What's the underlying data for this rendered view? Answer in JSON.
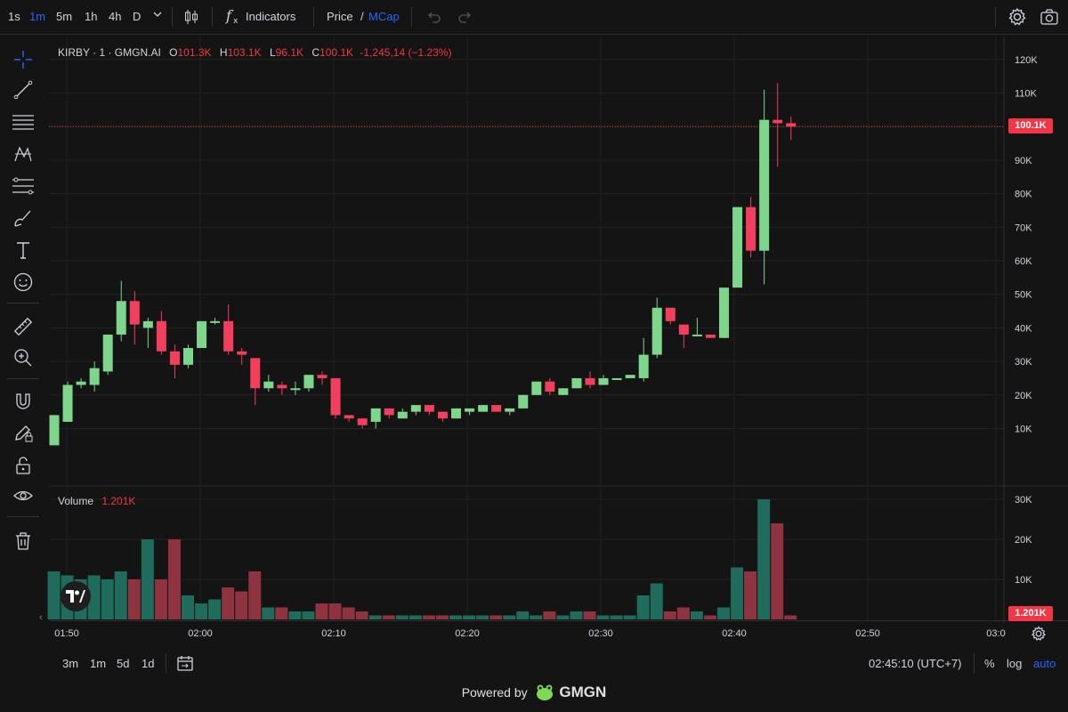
{
  "toolbar": {
    "intervals": [
      "1s",
      "1m",
      "5m",
      "1h",
      "4h",
      "D"
    ],
    "active_interval": "1m",
    "indicators_label": "Indicators",
    "price_label": "Price",
    "slash": "/",
    "mcap_label": "MCap"
  },
  "legend": {
    "symbol": "KIRBY · 1 · GMGN.AI",
    "o_label": "O",
    "o_value": "101.3K",
    "h_label": "H",
    "h_value": "103.1K",
    "l_label": "L",
    "l_value": "96.1K",
    "c_label": "C",
    "c_value": "100.1K",
    "change": "-1,245,14 (−1.23%)"
  },
  "volume_legend": {
    "label": "Volume",
    "value": "1.201K"
  },
  "price_tag": "100.1K",
  "volume_tag": "1.201K",
  "bottom": {
    "ranges": [
      "3m",
      "1m",
      "5d",
      "1d"
    ],
    "time": "02:45:10 (UTC+7)",
    "percent": "%",
    "log": "log",
    "auto": "auto"
  },
  "footer": {
    "powered": "Powered by",
    "brand": "GMGN"
  },
  "colors": {
    "up": "#7dd68c",
    "down": "#f23f5d",
    "vol_up": "#1f6b5c",
    "vol_down": "#8f3340",
    "accent": "#2962ff"
  },
  "chart_data": {
    "type": "candlestick",
    "price_axis": {
      "ticks": [
        "120K",
        "110K",
        "100K",
        "90K",
        "80K",
        "70K",
        "60K",
        "50K",
        "40K",
        "30K",
        "20K",
        "10K"
      ],
      "tick_values": [
        120,
        110,
        100,
        90,
        80,
        70,
        60,
        50,
        40,
        30,
        20,
        10
      ],
      "unit": "K"
    },
    "volume_axis": {
      "ticks": [
        "30K",
        "20K",
        "10K"
      ],
      "tick_values": [
        30,
        20,
        10
      ],
      "unit": "K"
    },
    "time_axis": {
      "ticks": [
        "01:50",
        "02:00",
        "02:10",
        "02:20",
        "02:30",
        "02:40",
        "02:50",
        "03:0"
      ]
    },
    "candles": [
      {
        "o": 5,
        "h": 14,
        "l": 5,
        "c": 14,
        "v": 12
      },
      {
        "o": 12,
        "h": 24,
        "l": 12,
        "c": 23,
        "v": 11
      },
      {
        "o": 23,
        "h": 25,
        "l": 22,
        "c": 24,
        "v": 10
      },
      {
        "o": 23,
        "h": 30,
        "l": 21,
        "c": 28,
        "v": 11
      },
      {
        "o": 27,
        "h": 38,
        "l": 26,
        "c": 38,
        "v": 10
      },
      {
        "o": 38,
        "h": 54,
        "l": 36,
        "c": 48,
        "v": 12
      },
      {
        "o": 48,
        "h": 51,
        "l": 35,
        "c": 41,
        "v": 10
      },
      {
        "o": 40,
        "h": 43,
        "l": 34,
        "c": 42,
        "v": 20
      },
      {
        "o": 42,
        "h": 45,
        "l": 32,
        "c": 33,
        "v": 10
      },
      {
        "o": 33,
        "h": 35,
        "l": 25,
        "c": 29,
        "v": 20
      },
      {
        "o": 29,
        "h": 35,
        "l": 28,
        "c": 34,
        "v": 6
      },
      {
        "o": 34,
        "h": 42,
        "l": 34,
        "c": 42,
        "v": 4
      },
      {
        "o": 42,
        "h": 43,
        "l": 41,
        "c": 42,
        "v": 5
      },
      {
        "o": 42,
        "h": 47,
        "l": 32,
        "c": 33,
        "v": 8
      },
      {
        "o": 33,
        "h": 34,
        "l": 29,
        "c": 32,
        "v": 7
      },
      {
        "o": 31,
        "h": 31,
        "l": 17,
        "c": 22,
        "v": 12
      },
      {
        "o": 22,
        "h": 26,
        "l": 21,
        "c": 24,
        "v": 3
      },
      {
        "o": 23,
        "h": 24,
        "l": 20,
        "c": 22,
        "v": 3
      },
      {
        "o": 22,
        "h": 24,
        "l": 20,
        "c": 22,
        "v": 2
      },
      {
        "o": 22,
        "h": 26,
        "l": 21,
        "c": 26,
        "v": 2
      },
      {
        "o": 26,
        "h": 27,
        "l": 23,
        "c": 25,
        "v": 4
      },
      {
        "o": 25,
        "h": 25,
        "l": 13,
        "c": 14,
        "v": 4
      },
      {
        "o": 14,
        "h": 14,
        "l": 12,
        "c": 13,
        "v": 3
      },
      {
        "o": 13,
        "h": 12,
        "l": 10,
        "c": 11,
        "v": 2
      },
      {
        "o": 12,
        "h": 16,
        "l": 10,
        "c": 16,
        "v": 1
      },
      {
        "o": 16,
        "h": 16,
        "l": 13,
        "c": 14,
        "v": 1
      },
      {
        "o": 13,
        "h": 16,
        "l": 13,
        "c": 15,
        "v": 1
      },
      {
        "o": 15,
        "h": 17,
        "l": 14,
        "c": 17,
        "v": 1
      },
      {
        "o": 17,
        "h": 17,
        "l": 14,
        "c": 15,
        "v": 1
      },
      {
        "o": 15,
        "h": 15,
        "l": 12,
        "c": 13,
        "v": 1
      },
      {
        "o": 13,
        "h": 16,
        "l": 13,
        "c": 16,
        "v": 1
      },
      {
        "o": 15,
        "h": 16,
        "l": 14,
        "c": 16,
        "v": 1
      },
      {
        "o": 15,
        "h": 17,
        "l": 15,
        "c": 17,
        "v": 1
      },
      {
        "o": 17,
        "h": 17,
        "l": 15,
        "c": 15,
        "v": 1
      },
      {
        "o": 15,
        "h": 16,
        "l": 14,
        "c": 16,
        "v": 1
      },
      {
        "o": 16,
        "h": 20,
        "l": 16,
        "c": 20,
        "v": 2
      },
      {
        "o": 20,
        "h": 24,
        "l": 20,
        "c": 24,
        "v": 1
      },
      {
        "o": 24,
        "h": 25,
        "l": 20,
        "c": 21,
        "v": 2
      },
      {
        "o": 20,
        "h": 22,
        "l": 20,
        "c": 22,
        "v": 1
      },
      {
        "o": 22,
        "h": 25,
        "l": 22,
        "c": 25,
        "v": 2
      },
      {
        "o": 25,
        "h": 27,
        "l": 22,
        "c": 23,
        "v": 2
      },
      {
        "o": 23,
        "h": 26,
        "l": 23,
        "c": 25,
        "v": 1
      },
      {
        "o": 25,
        "h": 25,
        "l": 25,
        "c": 25,
        "v": 1
      },
      {
        "o": 25,
        "h": 26,
        "l": 25,
        "c": 26,
        "v": 1
      },
      {
        "o": 25,
        "h": 37,
        "l": 24,
        "c": 32,
        "v": 6
      },
      {
        "o": 32,
        "h": 49,
        "l": 31,
        "c": 46,
        "v": 9
      },
      {
        "o": 46,
        "h": 46,
        "l": 41,
        "c": 42,
        "v": 2
      },
      {
        "o": 41,
        "h": 41,
        "l": 34,
        "c": 38,
        "v": 3
      },
      {
        "o": 38,
        "h": 43,
        "l": 38,
        "c": 38,
        "v": 2
      },
      {
        "o": 38,
        "h": 38,
        "l": 37,
        "c": 37,
        "v": 1
      },
      {
        "o": 37,
        "h": 52,
        "l": 37,
        "c": 52,
        "v": 3
      },
      {
        "o": 52,
        "h": 76,
        "l": 52,
        "c": 76,
        "v": 13
      },
      {
        "o": 76,
        "h": 79,
        "l": 61,
        "c": 63,
        "v": 12
      },
      {
        "o": 63,
        "h": 111,
        "l": 53,
        "c": 102,
        "v": 30
      },
      {
        "o": 102,
        "h": 113,
        "l": 88,
        "c": 101,
        "v": 24
      },
      {
        "o": 101,
        "h": 103,
        "l": 96,
        "c": 100,
        "v": 1
      }
    ]
  }
}
